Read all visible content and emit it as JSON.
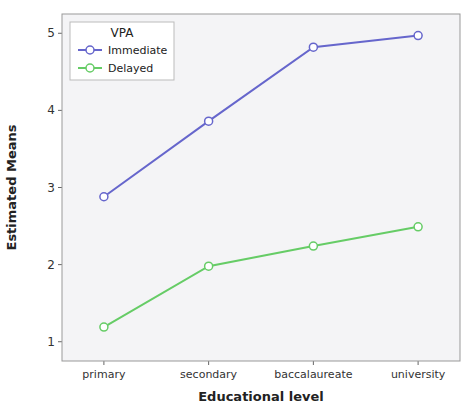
{
  "chart_data": {
    "type": "line",
    "categories": [
      "primary",
      "secondary",
      "baccalaureate",
      "university"
    ],
    "series": [
      {
        "name": "Immediate",
        "color": "#6666cc",
        "values": [
          2.88,
          3.86,
          4.82,
          4.97
        ]
      },
      {
        "name": "Delayed",
        "color": "#66cc66",
        "values": [
          1.19,
          1.98,
          2.24,
          2.49
        ]
      }
    ],
    "xlabel": "Educational level",
    "ylabel": "Estimated Means",
    "legend_title": "VPA",
    "ylim": [
      0.75,
      5.25
    ],
    "yticks": [
      1,
      2,
      3,
      4,
      5
    ],
    "grid": false,
    "legend": "upper left",
    "marker": "circle"
  }
}
